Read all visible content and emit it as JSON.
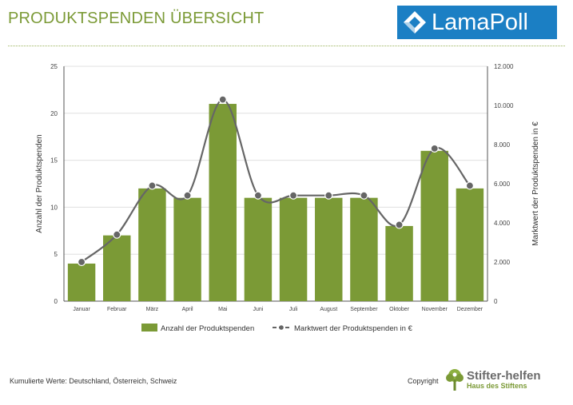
{
  "header": {
    "title": "PRODUKTSPENDEN ÜBERSICHT",
    "logo_text": "LamaPoll"
  },
  "chart_data": {
    "type": "bar",
    "categories": [
      "Januar",
      "Februar",
      "März",
      "April",
      "Mai",
      "Juni",
      "Juli",
      "August",
      "September",
      "Oktober",
      "November",
      "Dezember"
    ],
    "series": [
      {
        "name": "Anzahl der Produktspenden",
        "type": "bar",
        "axis": "left",
        "values": [
          4,
          7,
          12,
          11,
          21,
          11,
          11,
          11,
          11,
          8,
          16,
          12
        ]
      },
      {
        "name": "Marktwert der Produktspenden in €",
        "type": "line",
        "axis": "right",
        "values": [
          2000,
          3400,
          5900,
          5400,
          10300,
          5400,
          5400,
          5400,
          5400,
          3900,
          7800,
          5900
        ]
      }
    ],
    "ylabel": "Anzahl der Produktspenden",
    "ylabel_right": "Marktwert der Produktspenden in €",
    "ylim": [
      0,
      25
    ],
    "ylim_right": [
      0,
      12000
    ],
    "yticks": [
      "0",
      "5",
      "10",
      "15",
      "20",
      "25"
    ],
    "yticks_right": [
      "0",
      "2.000",
      "4.000",
      "6.000",
      "8.000",
      "10.000",
      "12.000"
    ],
    "grid": true,
    "legend_position": "bottom",
    "colors": {
      "bar": "#7b9a36",
      "line": "#666666"
    }
  },
  "footer": {
    "note": "Kumulierte Werte: Deutschland,  Österreich,  Schweiz",
    "copyright": "Copyright",
    "brand_name": "Stifter-helfen",
    "brand_sub": "Haus des Stiftens"
  }
}
